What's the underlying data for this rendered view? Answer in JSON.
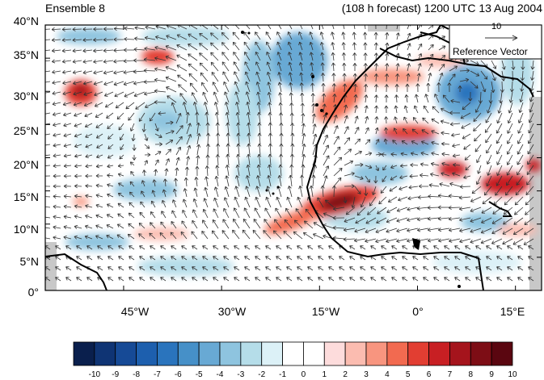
{
  "titles": {
    "left": "Ensemble 8",
    "right": "(108 h forecast) 1200 UTC 13 Aug 2004"
  },
  "map": {
    "lon_range": [
      -57,
      19
    ],
    "lat_range": [
      0,
      40
    ],
    "y_ticks": [
      "40°N",
      "35°N",
      "30°N",
      "25°N",
      "20°N",
      "15°N",
      "10°N",
      "5°N",
      "0°"
    ],
    "x_ticks": [
      "45°W",
      "30°W",
      "15°W",
      "0°",
      "15°E"
    ],
    "x_tick_values": [
      -45,
      -30,
      -15,
      0,
      15
    ],
    "y_tick_values": [
      40,
      35,
      30,
      25,
      20,
      15,
      10,
      5,
      0
    ]
  },
  "reference_vector": {
    "magnitude": "10",
    "label": "Reference Vector"
  },
  "colorbar": {
    "labels": [
      "-10",
      "-9",
      "-8",
      "-7",
      "-6",
      "-5",
      "-4",
      "-3",
      "-2",
      "-1",
      "0",
      "1",
      "2",
      "3",
      "4",
      "5",
      "6",
      "7",
      "8",
      "9",
      "10"
    ],
    "colors": [
      "#0a1f4d",
      "#0f3474",
      "#164a96",
      "#1d5fae",
      "#2a74bd",
      "#4690c8",
      "#68a9d4",
      "#8ec4df",
      "#b5dde9",
      "#dcf1f7",
      "#ffffff",
      "#ffffff",
      "#fddcdc",
      "#fbbcb0",
      "#f8957f",
      "#f26a50",
      "#e23e32",
      "#c81f23",
      "#a5141c",
      "#7d0d15",
      "#5a0610"
    ]
  },
  "colors": {
    "coast": "#000000",
    "land_mask": "#c8c8c8",
    "arrow": "#333333"
  }
}
